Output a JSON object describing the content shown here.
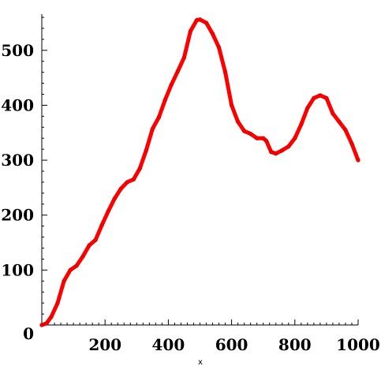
{
  "chart_data": {
    "type": "line",
    "title": "",
    "xlabel": "x",
    "ylabel": "",
    "xlim": [
      0,
      1000
    ],
    "ylim": [
      0,
      560
    ],
    "grid": false,
    "legend": "none",
    "x_ticks": [
      200,
      400,
      600,
      800,
      1000
    ],
    "y_ticks": [
      0,
      100,
      200,
      300,
      400,
      500
    ],
    "x_tick_labels": [
      "200",
      "400",
      "600",
      "800",
      "1000"
    ],
    "y_tick_labels": [
      "0",
      "100",
      "200",
      "300",
      "400",
      "500"
    ],
    "series": [
      {
        "color": "#ff0000",
        "points": [
          [
            0,
            0
          ],
          [
            15,
            3
          ],
          [
            30,
            15
          ],
          [
            50,
            40
          ],
          [
            70,
            80
          ],
          [
            90,
            100
          ],
          [
            110,
            108
          ],
          [
            130,
            125
          ],
          [
            150,
            145
          ],
          [
            170,
            155
          ],
          [
            190,
            182
          ],
          [
            210,
            207
          ],
          [
            230,
            230
          ],
          [
            250,
            248
          ],
          [
            270,
            260
          ],
          [
            290,
            265
          ],
          [
            310,
            285
          ],
          [
            330,
            318
          ],
          [
            350,
            357
          ],
          [
            370,
            378
          ],
          [
            390,
            410
          ],
          [
            410,
            438
          ],
          [
            430,
            462
          ],
          [
            450,
            487
          ],
          [
            470,
            535
          ],
          [
            490,
            555
          ],
          [
            500,
            556
          ],
          [
            520,
            550
          ],
          [
            540,
            530
          ],
          [
            560,
            505
          ],
          [
            580,
            460
          ],
          [
            600,
            400
          ],
          [
            620,
            370
          ],
          [
            640,
            353
          ],
          [
            660,
            348
          ],
          [
            680,
            340
          ],
          [
            700,
            340
          ],
          [
            710,
            335
          ],
          [
            725,
            315
          ],
          [
            740,
            312
          ],
          [
            760,
            318
          ],
          [
            780,
            325
          ],
          [
            800,
            340
          ],
          [
            820,
            365
          ],
          [
            840,
            395
          ],
          [
            860,
            413
          ],
          [
            880,
            418
          ],
          [
            900,
            413
          ],
          [
            920,
            385
          ],
          [
            940,
            370
          ],
          [
            960,
            355
          ],
          [
            980,
            330
          ],
          [
            1000,
            300
          ]
        ]
      }
    ]
  }
}
